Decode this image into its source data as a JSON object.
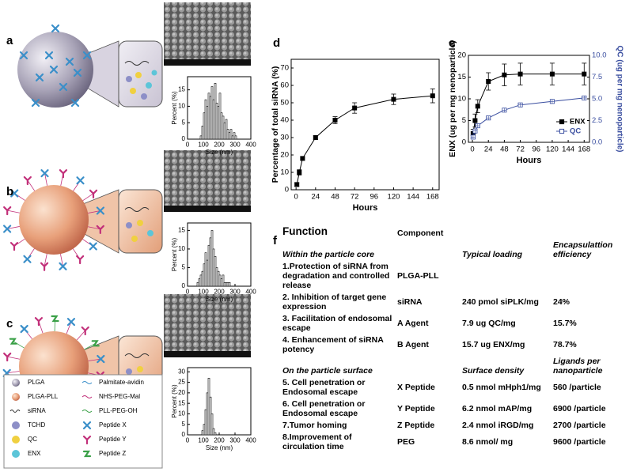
{
  "panel_labels": [
    "a",
    "b",
    "c",
    "d",
    "e",
    "f"
  ],
  "legend": {
    "items": [
      "PLGA",
      "PLGA-PLL",
      "siRNA",
      "TCHD",
      "QC",
      "ENX",
      "Palmitate-avidin",
      "NHS-PEG-Mal",
      "PLL-PEG-OH",
      "Peptide X",
      "Peptide Y",
      "Peptide Z"
    ]
  },
  "chart_data": [
    {
      "type": "histogram",
      "bins": [
        80,
        90,
        100,
        110,
        120,
        130,
        140,
        150,
        160,
        170,
        180,
        190,
        200,
        210,
        220,
        230,
        240,
        250,
        260,
        270,
        280,
        290,
        300,
        310
      ],
      "values": [
        1,
        4,
        8,
        12,
        10,
        14,
        13,
        16,
        12,
        17,
        11,
        10,
        14,
        8,
        7,
        5,
        6,
        3,
        2,
        3,
        1,
        2,
        1
      ],
      "xlim": [
        0,
        400
      ],
      "xticks": [
        0,
        100,
        200,
        300,
        400
      ],
      "ylim": [
        0,
        19
      ],
      "yticks": [
        0,
        5,
        10,
        15
      ],
      "xlabel": "Size (nm)",
      "ylabel": "Percent (%)",
      "color": "#ffffff"
    },
    {
      "type": "histogram",
      "bins": [
        60,
        70,
        80,
        90,
        100,
        110,
        120,
        130,
        140,
        150,
        160,
        170,
        180,
        190,
        200,
        210,
        220,
        230,
        240,
        250,
        260,
        270
      ],
      "values": [
        1,
        2,
        3,
        4,
        6,
        9,
        7,
        11,
        13,
        15,
        10,
        8,
        5,
        4,
        3,
        2,
        3,
        1,
        1,
        1,
        1
      ],
      "xlim": [
        0,
        400
      ],
      "xticks": [
        0,
        100,
        200,
        300,
        400
      ],
      "ylim": [
        0,
        17
      ],
      "yticks": [
        0,
        5,
        10,
        15
      ],
      "xlabel": "Size (nm)",
      "ylabel": "Percent (%)",
      "color": "#ffffff"
    },
    {
      "type": "histogram",
      "bins": [
        90,
        100,
        110,
        120,
        130,
        140,
        150,
        160,
        170,
        180
      ],
      "values": [
        2,
        5,
        12,
        20,
        27,
        18,
        10,
        3,
        1
      ],
      "xlim": [
        0,
        400
      ],
      "xticks": [
        0,
        100,
        200,
        300,
        400
      ],
      "ylim": [
        0,
        32
      ],
      "yticks": [
        0,
        5,
        10,
        15,
        20,
        25,
        30
      ],
      "xlabel": "Size (nm)",
      "ylabel": "Percent (%)",
      "color": "#ffffff"
    },
    {
      "type": "line",
      "x": [
        1,
        4,
        8,
        24,
        48,
        72,
        120,
        168
      ],
      "values": [
        3,
        10,
        18,
        30,
        40,
        47,
        52,
        54
      ],
      "errors": [
        1,
        1.5,
        1,
        1,
        2,
        3,
        3,
        4
      ],
      "color": "#000000",
      "marker": "square",
      "xlim": [
        -6,
        176
      ],
      "xticks": [
        0,
        24,
        48,
        72,
        96,
        120,
        144,
        168
      ],
      "ylim": [
        0,
        75
      ],
      "yticks": [
        0,
        10,
        20,
        30,
        40,
        50,
        60,
        70
      ],
      "xlabel": "Hours",
      "ylabel": "Percentage of total siRNA (%)"
    },
    {
      "type": "line",
      "x": [
        1,
        4,
        8,
        24,
        48,
        72,
        120,
        168
      ],
      "series": [
        {
          "name": "ENX",
          "color": "#000000",
          "marker": "square",
          "values": [
            2,
            5,
            8.3,
            14,
            15.5,
            15.7,
            15.7,
            15.7
          ],
          "errors": [
            1,
            1.5,
            1.5,
            2,
            2.5,
            2.5,
            2.5,
            2.5
          ]
        },
        {
          "name": "QC",
          "color": "#3b4fa0",
          "marker": "square-open",
          "axis": "y2",
          "values": [
            0.6,
            1.3,
            1.9,
            2.8,
            3.7,
            4.3,
            4.7,
            5.1
          ],
          "errors": [
            0.2,
            0.2,
            0.2,
            0.2,
            0.2,
            0.2,
            0.2,
            0.2
          ]
        }
      ],
      "xlim": [
        -6,
        176
      ],
      "xticks": [
        0,
        24,
        48,
        72,
        96,
        120,
        144,
        168
      ],
      "ylim": [
        0,
        20
      ],
      "yticks": [
        0,
        5,
        10,
        15,
        20
      ],
      "y2lim": [
        0,
        10
      ],
      "y2ticks": [
        {
          "value": 0,
          "label": "0.0"
        },
        2.5,
        {
          "value": 5,
          "label": "5.0"
        },
        7.5,
        {
          "value": 10,
          "label": "10.0"
        }
      ],
      "xlabel": "Hours",
      "ylabel": "ENX (ug per mg nenoparticle)",
      "y2label": "QC (ug per mg nenoparticle)",
      "legend": "lower right"
    }
  ],
  "table": {
    "headers": [
      "Function",
      "Component"
    ],
    "sections": [
      {
        "title": "Within the particle core",
        "columns": [
          "Typical loading",
          "Encapsulattion efficiency"
        ],
        "rows": [
          [
            "1.Protection of siRNA from degradation and controlled release",
            "PLGA-PLL"
          ],
          [
            "2. Inhibition of target gene expression",
            "siRNA",
            "240 pmol siPLK/mg",
            "24%"
          ],
          [
            "3. Facilitation of endosomal escape",
            "A Agent",
            "7.9 ug QC/mg",
            "15.7%"
          ],
          [
            "4. Enhancement of siRNA potency",
            "B Agent",
            "15.7 ug ENX/mg",
            "78.7%"
          ]
        ]
      },
      {
        "title": "On the particle surface",
        "columns": [
          "Surface density",
          "Ligands per nanoparticle"
        ],
        "rows": [
          [
            "5. Cell penetration or Endosomal escape",
            "X Peptide",
            "0.5 nmol mHph1/mg",
            "560 /particle"
          ],
          [
            "6. Cell penetration or Endosomal escape",
            "Y Peptide",
            "6.2 nmol mAP/mg",
            "6900 /particle"
          ],
          [
            "7.Tumor homing",
            "Z Peptide",
            "2.4 nmol iRGD/mg",
            "2700 /particle"
          ],
          [
            "8.Improvement of circulation time",
            "PEG",
            "8.6 nmol/ mg",
            "9600 /particle"
          ]
        ]
      }
    ]
  }
}
